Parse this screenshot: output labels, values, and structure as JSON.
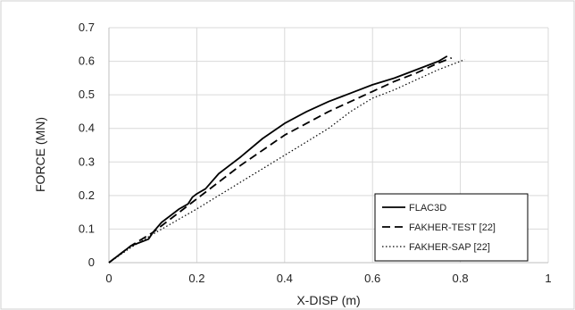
{
  "chart_data": {
    "type": "line",
    "title": "",
    "xlabel": "X-DISP (m)",
    "ylabel": "FORCE (MN)",
    "xlim": [
      0,
      1
    ],
    "ylim": [
      0,
      0.7
    ],
    "xticks": [
      "0",
      "0.2",
      "0.4",
      "0.6",
      "0.8",
      "1"
    ],
    "yticks": [
      "0",
      "0.1",
      "0.2",
      "0.3",
      "0.4",
      "0.5",
      "0.6",
      "0.7"
    ],
    "grid": true,
    "legend_position": "bottom-right",
    "series": [
      {
        "name": "FLAC3D",
        "dash": "solid",
        "color": "#000000",
        "points": [
          [
            0,
            0
          ],
          [
            0.02,
            0.02
          ],
          [
            0.05,
            0.05
          ],
          [
            0.07,
            0.06
          ],
          [
            0.09,
            0.07
          ],
          [
            0.1,
            0.09
          ],
          [
            0.12,
            0.12
          ],
          [
            0.14,
            0.14
          ],
          [
            0.16,
            0.16
          ],
          [
            0.18,
            0.175
          ],
          [
            0.19,
            0.195
          ],
          [
            0.2,
            0.205
          ],
          [
            0.22,
            0.22
          ],
          [
            0.25,
            0.265
          ],
          [
            0.3,
            0.315
          ],
          [
            0.35,
            0.37
          ],
          [
            0.4,
            0.415
          ],
          [
            0.45,
            0.45
          ],
          [
            0.5,
            0.48
          ],
          [
            0.55,
            0.505
          ],
          [
            0.6,
            0.53
          ],
          [
            0.65,
            0.55
          ],
          [
            0.7,
            0.575
          ],
          [
            0.75,
            0.6
          ],
          [
            0.77,
            0.615
          ]
        ]
      },
      {
        "name": "FAKHER-TEST [22]",
        "dash": "dashed",
        "color": "#000000",
        "points": [
          [
            0,
            0
          ],
          [
            0.05,
            0.05
          ],
          [
            0.1,
            0.09
          ],
          [
            0.15,
            0.14
          ],
          [
            0.2,
            0.19
          ],
          [
            0.25,
            0.24
          ],
          [
            0.3,
            0.29
          ],
          [
            0.35,
            0.335
          ],
          [
            0.4,
            0.38
          ],
          [
            0.45,
            0.415
          ],
          [
            0.5,
            0.45
          ],
          [
            0.55,
            0.48
          ],
          [
            0.6,
            0.51
          ],
          [
            0.65,
            0.54
          ],
          [
            0.7,
            0.565
          ],
          [
            0.75,
            0.595
          ],
          [
            0.78,
            0.61
          ]
        ]
      },
      {
        "name": "FAKHER-SAP [22]",
        "dash": "dotted",
        "color": "#000000",
        "points": [
          [
            0,
            0
          ],
          [
            0.05,
            0.045
          ],
          [
            0.1,
            0.085
          ],
          [
            0.2,
            0.16
          ],
          [
            0.3,
            0.24
          ],
          [
            0.4,
            0.32
          ],
          [
            0.5,
            0.4
          ],
          [
            0.55,
            0.45
          ],
          [
            0.6,
            0.49
          ],
          [
            0.65,
            0.515
          ],
          [
            0.7,
            0.545
          ],
          [
            0.75,
            0.575
          ],
          [
            0.8,
            0.6
          ],
          [
            0.81,
            0.605
          ]
        ]
      }
    ]
  }
}
